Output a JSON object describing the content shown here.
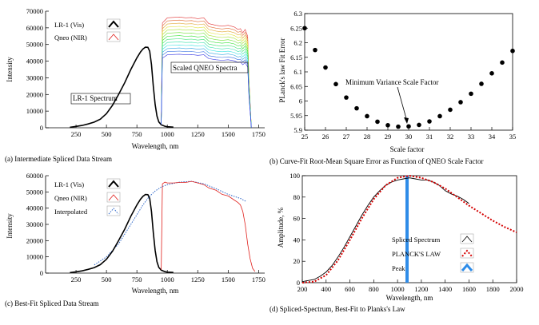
{
  "chart_data": [
    {
      "id": "a",
      "type": "line",
      "caption": "(a) Intermediate Spliced Data Stream",
      "xlabel": "Wavelength, nm",
      "ylabel": "Intensity",
      "xlim": [
        0,
        1800
      ],
      "ylim": [
        0,
        70000
      ],
      "xticks": [
        250,
        500,
        750,
        1000,
        1250,
        1500,
        1750
      ],
      "yticks": [
        0,
        10000,
        20000,
        30000,
        40000,
        50000,
        60000,
        70000
      ],
      "legend": [
        {
          "label": "LR-1 (Vis)",
          "style": "black-line"
        },
        {
          "label": "Qneo (NIR)",
          "style": "red-line"
        }
      ],
      "annotations": [
        "Scaled QNEO Spectra",
        "LR-1 Spectrum"
      ],
      "series": [
        {
          "name": "LR-1 (Vis)",
          "x": [
            200,
            250,
            300,
            350,
            400,
            450,
            500,
            550,
            600,
            650,
            700,
            750,
            780,
            800,
            820,
            840,
            855,
            870,
            885,
            900,
            915,
            930,
            950,
            980,
            1000,
            1050
          ],
          "y": [
            300,
            800,
            1400,
            2300,
            3400,
            5200,
            8500,
            13500,
            20000,
            27000,
            35000,
            42000,
            45500,
            47300,
            48400,
            48300,
            46000,
            38000,
            25000,
            14000,
            7000,
            3500,
            1800,
            900,
            600,
            400
          ]
        },
        {
          "name": "Qneo (NIR)",
          "scaled_copies": 13,
          "x": [
            950,
            960,
            980,
            1000,
            1100,
            1150,
            1200,
            1250,
            1300,
            1340,
            1400,
            1450,
            1500,
            1550,
            1580,
            1600,
            1620,
            1640,
            1660,
            1670,
            1690
          ],
          "y_top": [
            3000,
            63000,
            64500,
            66000,
            66500,
            66000,
            66200,
            65500,
            66000,
            62500,
            61500,
            61000,
            61500,
            60500,
            59000,
            59500,
            57000,
            59000,
            55000,
            30000,
            0
          ]
        }
      ]
    },
    {
      "id": "b",
      "type": "scatter",
      "caption": "(b) Curve-Fit Root-Mean Square Error as Function of QNEO Scale Factor",
      "xlabel": "Scale factor",
      "ylabel": "PLanck's law Fit Error",
      "xlim": [
        25,
        35
      ],
      "ylim": [
        5.9,
        6.3
      ],
      "xticks": [
        25,
        26,
        27,
        28,
        29,
        30,
        31,
        32,
        33,
        34,
        35
      ],
      "yticks": [
        5.9,
        5.95,
        6.0,
        6.05,
        6.1,
        6.15,
        6.2,
        6.25,
        6.3
      ],
      "annotation": "Minimum Variance Scale Factor",
      "x": [
        25,
        25.5,
        26,
        26.5,
        27,
        27.5,
        28,
        28.5,
        29,
        29.5,
        30,
        30.5,
        31,
        31.5,
        32,
        32.5,
        33,
        33.5,
        34,
        34.5,
        35
      ],
      "y": [
        6.25,
        6.175,
        6.115,
        6.058,
        6.012,
        5.975,
        5.948,
        5.929,
        5.917,
        5.912,
        5.913,
        5.918,
        5.93,
        5.948,
        5.97,
        5.996,
        6.025,
        6.059,
        6.095,
        6.132,
        6.172
      ]
    },
    {
      "id": "c",
      "type": "line",
      "caption": "(c) Best-Fit  Spliced Data Stream",
      "xlabel": "Wavelength, nm",
      "ylabel": "Intensity",
      "xlim": [
        0,
        1800
      ],
      "ylim": [
        0,
        60000
      ],
      "xticks": [
        250,
        500,
        750,
        1000,
        1250,
        1500,
        1750
      ],
      "yticks": [
        0,
        10000,
        20000,
        30000,
        40000,
        50000,
        60000
      ],
      "legend": [
        {
          "label": "LR-1 (Vis)",
          "style": "black-line"
        },
        {
          "label": "Qneo (NIR)",
          "style": "red-line"
        },
        {
          "label": "Interpolated",
          "style": "blue-dotted"
        }
      ],
      "series": [
        {
          "name": "LR-1 (Vis)",
          "x": [
            200,
            250,
            300,
            350,
            400,
            450,
            500,
            550,
            600,
            650,
            700,
            750,
            780,
            800,
            820,
            840,
            855,
            870,
            885,
            900,
            915,
            930,
            950,
            980,
            1000,
            1050
          ],
          "y": [
            300,
            800,
            1400,
            2300,
            3400,
            5200,
            8500,
            13500,
            20000,
            27000,
            35000,
            42000,
            45500,
            47300,
            48400,
            48300,
            46000,
            38000,
            25000,
            14000,
            7000,
            3500,
            1800,
            900,
            600,
            400
          ]
        },
        {
          "name": "Qneo (NIR)",
          "x": [
            950,
            960,
            980,
            1000,
            1050,
            1100,
            1150,
            1200,
            1250,
            1300,
            1340,
            1400,
            1450,
            1500,
            1550,
            1580,
            1600,
            1620,
            1640,
            1660,
            1680,
            1700,
            1720
          ],
          "y": [
            2000,
            55000,
            56000,
            55500,
            55500,
            55800,
            55800,
            56500,
            55500,
            54500,
            52500,
            51000,
            48500,
            47500,
            45000,
            43500,
            42000,
            38000,
            30000,
            18000,
            9000,
            3000,
            1000
          ]
        },
        {
          "name": "Interpolated",
          "x": [
            400,
            500,
            600,
            700,
            800,
            850,
            900,
            950,
            1000,
            1100,
            1200,
            1300,
            1400,
            1500,
            1600,
            1650
          ],
          "y": [
            5000,
            10000,
            18000,
            30000,
            42000,
            47000,
            50500,
            53000,
            54500,
            56000,
            56500,
            55000,
            52000,
            48500,
            46000,
            44000
          ]
        }
      ]
    },
    {
      "id": "d",
      "type": "line",
      "caption": "(d) Spliced-Spectrum, Best-Fit to Planks's Law",
      "xlabel": "Wavelength, nm",
      "ylabel": "Amplitude, %",
      "xlim": [
        200,
        2000
      ],
      "ylim": [
        0,
        100
      ],
      "xticks": [
        200,
        400,
        600,
        800,
        1000,
        1200,
        1400,
        1600,
        1800,
        2000
      ],
      "yticks": [
        0,
        20,
        40,
        60,
        80,
        100
      ],
      "legend": [
        {
          "label": "Spliced Spectrum",
          "style": "black-line"
        },
        {
          "label": "PLANCK'S LAW",
          "style": "red-dotted"
        },
        {
          "label": "Peak",
          "style": "blue-bar"
        }
      ],
      "peak_x": 1080,
      "series": [
        {
          "name": "Spliced Spectrum",
          "x": [
            200,
            250,
            300,
            350,
            400,
            450,
            500,
            550,
            600,
            650,
            700,
            750,
            800,
            850,
            900,
            950,
            1000,
            1050,
            1100,
            1150,
            1200,
            1250,
            1300,
            1350,
            1400,
            1450,
            1500,
            1550,
            1600
          ],
          "y": [
            1,
            2,
            3,
            6,
            10,
            16,
            24,
            33,
            43,
            53,
            63,
            72,
            80,
            86,
            91,
            94,
            96,
            97,
            98,
            97,
            96,
            96,
            94,
            91,
            86,
            83,
            81,
            78,
            74
          ]
        },
        {
          "name": "PLANCK'S LAW",
          "x": [
            200,
            300,
            400,
            500,
            600,
            700,
            800,
            900,
            1000,
            1100,
            1200,
            1300,
            1400,
            1500,
            1600,
            1700,
            1800,
            1900,
            2000
          ],
          "y": [
            0,
            1,
            7,
            21,
            40,
            60,
            78,
            91,
            98,
            100,
            98,
            94,
            88,
            80,
            72,
            65,
            58,
            52,
            47
          ]
        }
      ]
    }
  ]
}
